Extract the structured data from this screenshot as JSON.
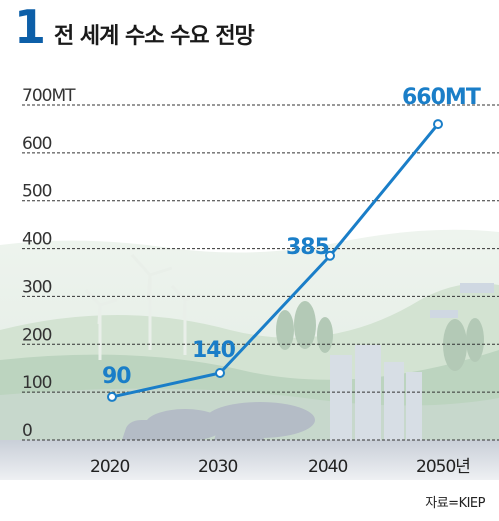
{
  "title_number": "1",
  "title": "전 세계 수소 수요 전망",
  "source": "자료=KIEP",
  "chart_data": {
    "type": "line",
    "x": [
      "2020",
      "2030",
      "2040",
      "2050"
    ],
    "x_tick_labels": [
      "2020",
      "2030",
      "2040",
      "2050년"
    ],
    "values": [
      90,
      140,
      385,
      660
    ],
    "data_labels": [
      "90",
      "140",
      "385",
      "660MT"
    ],
    "y_ticks": [
      0,
      100,
      200,
      300,
      400,
      500,
      600,
      700
    ],
    "y_tick_labels": [
      "0",
      "100",
      "200",
      "300",
      "400",
      "500",
      "600",
      "700MT"
    ],
    "ylim": [
      0,
      700
    ],
    "grid": true,
    "line_color": "#1a7ec8",
    "label_color": "#1a7ec8"
  }
}
